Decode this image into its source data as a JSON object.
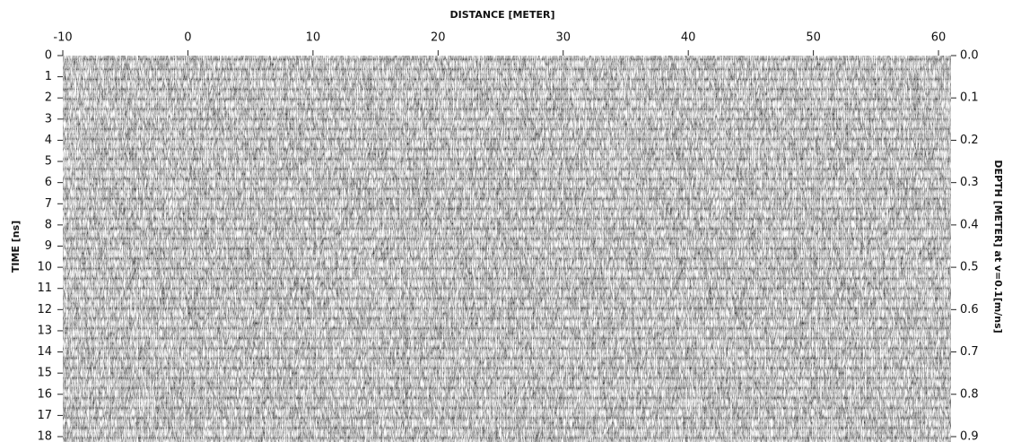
{
  "chart_data": {
    "type": "radargram",
    "x_label": "DISTANCE [METER]",
    "y_label": "TIME [ns]",
    "y2_label": "DEPTH [METER] at v=0.1[m/ns]",
    "xlim": [
      -10,
      61
    ],
    "xticks": [
      -10,
      0,
      10,
      20,
      30,
      40,
      50,
      60
    ],
    "ylim": [
      0,
      18
    ],
    "yticks": [
      0,
      1,
      2,
      3,
      4,
      5,
      6,
      7,
      8,
      9,
      10,
      11,
      12,
      13,
      14,
      15,
      16,
      17,
      18
    ],
    "y2lim": [
      0,
      0.9
    ],
    "y2ticks": [
      {
        "value": 0,
        "label": "0.0"
      },
      0.1,
      0.2,
      0.3,
      0.4,
      0.5,
      0.6,
      0.7,
      0.8,
      0.9
    ]
  }
}
